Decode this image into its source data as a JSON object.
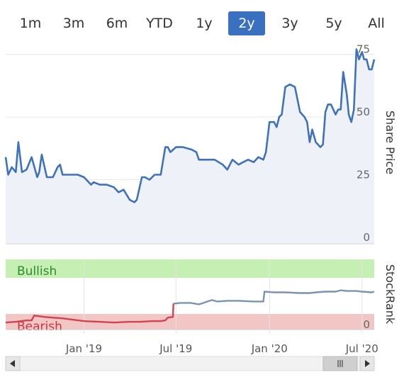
{
  "range_selector": {
    "buttons": [
      "1m",
      "3m",
      "6m",
      "YTD",
      "1y",
      "2y",
      "3y",
      "5y",
      "All"
    ],
    "active": "2y"
  },
  "colors": {
    "price_line": "#3f72b8",
    "stockrank_bull": "#7b93b3",
    "stockrank_bear": "#d04452",
    "bullish_band": "#c6efb3",
    "bearish_band": "#f1c6c4",
    "active_button": "#3a70c0"
  },
  "chart_data": [
    {
      "type": "line",
      "title": "",
      "ylabel": "Share Price",
      "ylim": [
        0,
        80
      ],
      "yticks": [
        "0",
        "25",
        "50",
        "75"
      ],
      "grid": true,
      "series": [
        {
          "x": [
            "2018-07-31",
            "2018-08-05",
            "2018-08-12",
            "2018-08-20",
            "2018-08-25",
            "2018-09-01",
            "2018-09-10",
            "2018-09-20",
            "2018-10-01",
            "2018-10-05",
            "2018-10-10",
            "2018-10-20",
            "2018-11-01",
            "2018-11-10",
            "2018-11-15",
            "2018-11-20",
            "2018-12-01",
            "2018-12-10",
            "2018-12-20",
            "2019-01-01",
            "2019-01-15",
            "2019-01-20",
            "2019-02-01",
            "2019-02-15",
            "2019-03-01",
            "2019-03-10",
            "2019-03-20",
            "2019-04-01",
            "2019-04-10",
            "2019-04-15",
            "2019-04-25",
            "2019-05-01",
            "2019-05-10",
            "2019-05-20",
            "2019-06-01",
            "2019-06-10",
            "2019-06-15",
            "2019-06-20",
            "2019-07-01",
            "2019-07-15",
            "2019-08-01",
            "2019-08-10",
            "2019-08-15",
            "2019-09-01",
            "2019-09-15",
            "2019-10-01",
            "2019-10-10",
            "2019-10-15",
            "2019-10-20",
            "2019-11-01",
            "2019-11-10",
            "2019-11-20",
            "2019-12-01",
            "2019-12-10",
            "2019-12-20",
            "2019-12-25",
            "2020-01-01",
            "2020-01-10",
            "2020-01-15",
            "2020-01-20",
            "2020-01-25",
            "2020-02-01",
            "2020-02-10",
            "2020-02-20",
            "2020-03-01",
            "2020-03-10",
            "2020-03-15",
            "2020-03-20",
            "2020-03-25",
            "2020-04-01",
            "2020-04-10",
            "2020-04-15",
            "2020-04-20",
            "2020-04-25",
            "2020-05-01",
            "2020-05-10",
            "2020-05-15",
            "2020-05-20",
            "2020-05-25",
            "2020-06-01",
            "2020-06-05",
            "2020-06-10",
            "2020-06-15",
            "2020-06-20",
            "2020-06-25",
            "2020-07-01",
            "2020-07-05",
            "2020-07-10",
            "2020-07-15",
            "2020-07-20",
            "2020-07-25"
          ],
          "y": [
            34,
            27,
            30,
            28,
            40,
            28,
            29,
            34,
            26,
            28,
            35,
            26,
            26,
            30,
            31,
            27,
            27,
            27,
            27,
            26,
            23,
            24,
            23,
            23,
            22,
            20,
            21,
            17,
            16,
            17,
            26,
            26,
            25,
            27,
            27,
            38,
            38,
            36,
            38,
            38,
            37,
            36,
            33,
            33,
            33,
            31,
            29,
            31,
            33,
            31,
            32,
            33,
            32,
            34,
            33,
            36,
            48,
            48,
            46,
            50,
            51,
            62,
            63,
            62,
            52,
            50,
            48,
            40,
            45,
            40,
            38,
            39,
            52,
            55,
            55,
            51,
            53,
            53,
            68,
            59,
            51,
            48,
            53,
            77,
            73,
            76,
            73,
            73,
            69,
            69,
            73
          ]
        }
      ]
    },
    {
      "type": "line",
      "title": "",
      "ylabel": "StockRank",
      "yticks": [
        "0"
      ],
      "bands": [
        {
          "label": "Bullish",
          "from": 67,
          "to": 100
        },
        {
          "label": "Bearish",
          "from": 0,
          "to": 33
        }
      ],
      "xticks": [
        {
          "date": "2019-01-01",
          "label": "Jan '19"
        },
        {
          "date": "2019-07-01",
          "label": "Jul '19"
        },
        {
          "date": "2020-01-01",
          "label": "Jan '20"
        },
        {
          "date": "2020-07-01",
          "label": "Jul '20"
        }
      ],
      "series": [
        {
          "x": [
            "2018-07-31",
            "2018-08-20",
            "2018-09-10",
            "2018-09-20",
            "2018-09-25",
            "2018-10-15",
            "2018-11-01",
            "2018-11-20",
            "2018-12-10",
            "2019-01-01",
            "2019-02-01",
            "2019-03-01",
            "2019-04-01",
            "2019-04-20",
            "2019-05-15",
            "2019-06-01",
            "2019-06-10",
            "2019-06-15",
            "2019-06-25",
            "2019-06-26",
            "2019-07-10",
            "2019-07-30",
            "2019-08-15",
            "2019-08-20",
            "2019-09-01",
            "2019-09-10",
            "2019-09-20",
            "2019-10-10",
            "2019-11-01",
            "2019-12-01",
            "2019-12-20",
            "2019-12-22",
            "2020-01-10",
            "2020-02-01",
            "2020-03-01",
            "2020-03-20",
            "2020-04-01",
            "2020-04-20",
            "2020-05-10",
            "2020-05-20",
            "2020-06-01",
            "2020-06-20",
            "2020-07-01",
            "2020-07-20",
            "2020-07-25"
          ],
          "y": [
            10,
            11,
            13,
            13,
            20,
            18,
            17,
            16,
            14,
            12,
            11,
            10,
            11,
            11,
            12,
            12,
            13,
            17,
            18,
            37,
            38,
            38,
            36,
            37,
            40,
            42,
            40,
            41,
            41,
            40,
            40,
            54,
            53,
            53,
            52,
            52,
            53,
            54,
            54,
            56,
            55,
            55,
            54,
            53,
            54
          ]
        }
      ]
    }
  ]
}
